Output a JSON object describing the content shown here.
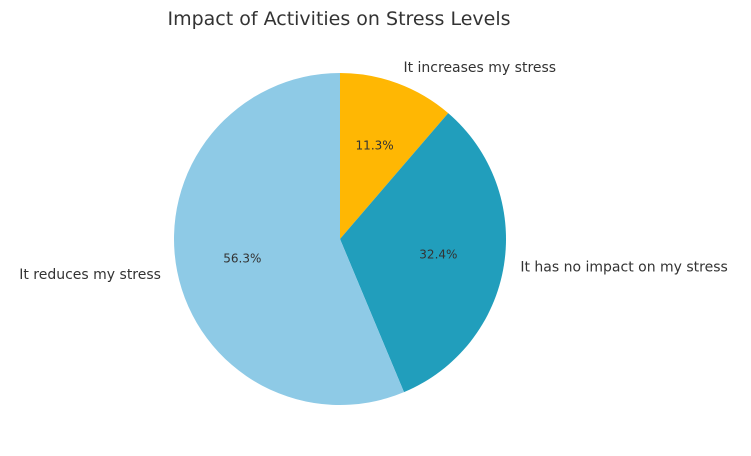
{
  "chart_data": {
    "type": "pie",
    "title": "Impact of Activities on Stress Levels",
    "start_angle_deg": 90,
    "direction": "clockwise",
    "slices": [
      {
        "label": "It increases my stress",
        "value": 11.3,
        "pct_label": "11.3%",
        "color": "#FFB703"
      },
      {
        "label": "It has no impact on my stress",
        "value": 32.4,
        "pct_label": "32.4%",
        "color": "#219EBC"
      },
      {
        "label": "It reduces my stress",
        "value": 56.3,
        "pct_label": "56.3%",
        "color": "#8ECAE6"
      }
    ]
  }
}
